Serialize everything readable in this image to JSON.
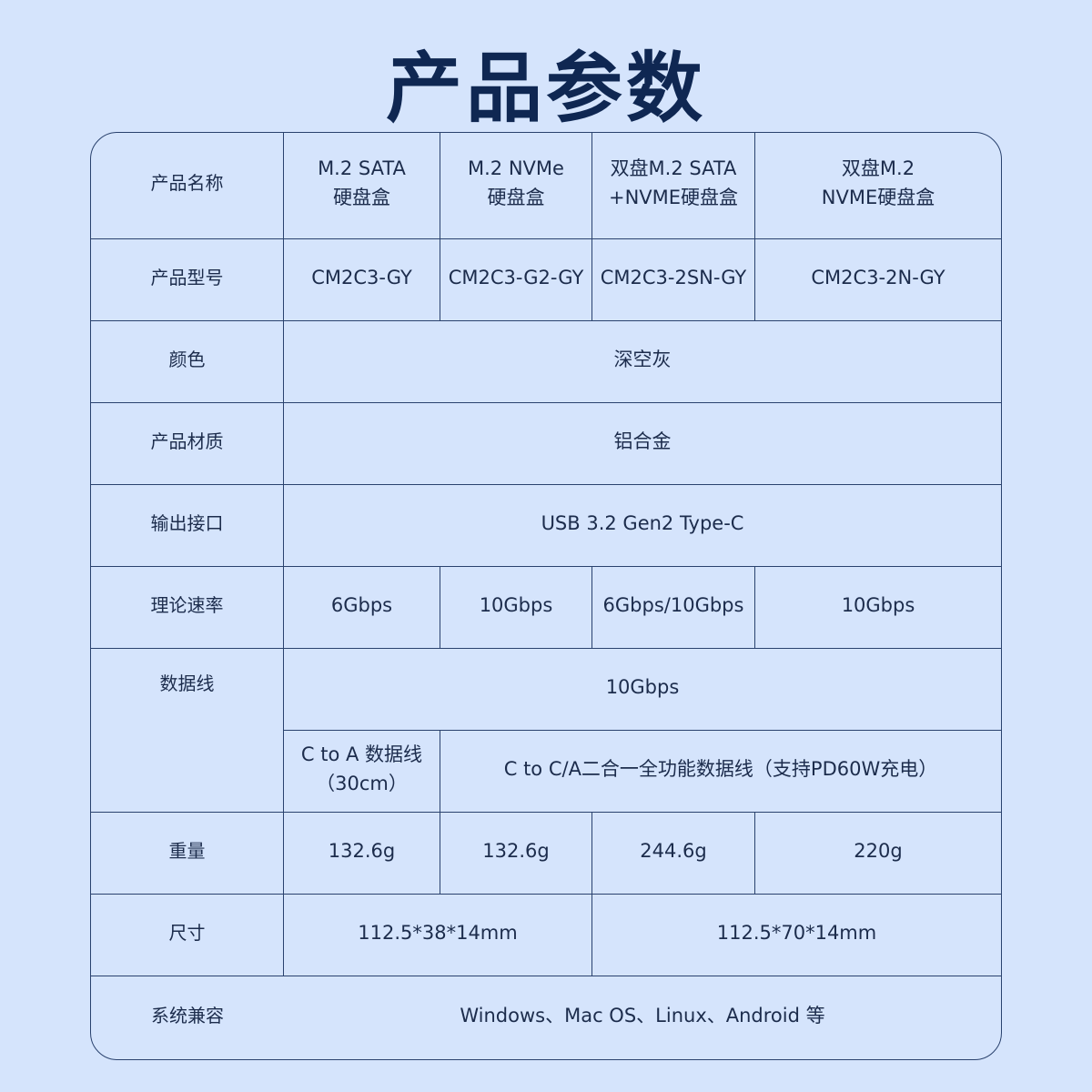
{
  "title": "产品参数",
  "rows": {
    "name": {
      "label": "产品名称",
      "values": [
        "M.2 SATA\n硬盘盒",
        "M.2 NVMe\n硬盘盒",
        "双盘M.2 SATA\n+NVME硬盘盒",
        "双盘M.2\nNVME硬盘盒"
      ]
    },
    "model": {
      "label": "产品型号",
      "values": [
        "CM2C3-GY",
        "CM2C3-G2-GY",
        "CM2C3-2SN-GY",
        "CM2C3-2N-GY"
      ]
    },
    "color": {
      "label": "颜色",
      "value": "深空灰"
    },
    "material": {
      "label": "产品材质",
      "value": "铝合金"
    },
    "interface": {
      "label": "输出接口",
      "value": "USB 3.2 Gen2 Type-C"
    },
    "speed": {
      "label": "理论速率",
      "values": [
        "6Gbps",
        "10Gbps",
        "6Gbps/10Gbps",
        "10Gbps"
      ]
    },
    "cable": {
      "label": "数据线",
      "speed": "10Gbps",
      "cable_a": "C to A 数据线\n（30cm）",
      "cable_b": "C to C/A二合一全功能数据线（支持PD60W充电）"
    },
    "weight": {
      "label": "重量",
      "values": [
        "132.6g",
        "132.6g",
        "244.6g",
        "220g"
      ]
    },
    "size": {
      "label": "尺寸",
      "values": [
        "112.5*38*14mm",
        "112.5*70*14mm"
      ]
    },
    "os": {
      "label": "系统兼容",
      "value": "Windows、Mac OS、Linux、Android 等"
    }
  }
}
